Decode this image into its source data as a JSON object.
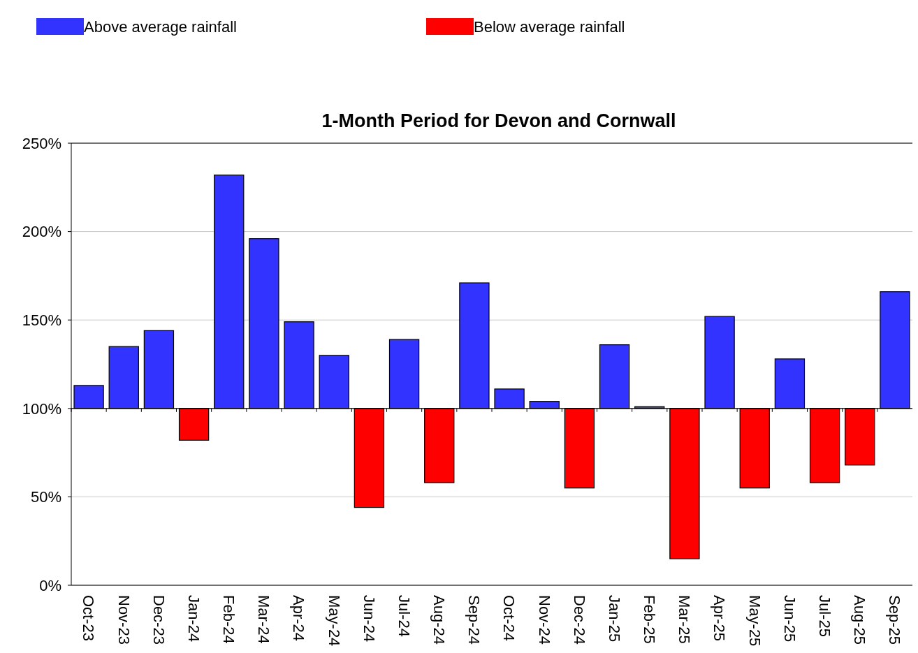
{
  "chart_data": {
    "type": "bar",
    "title": "1-Month Period for Devon and Cornwall",
    "categories": [
      "Oct-23",
      "Nov-23",
      "Dec-23",
      "Jan-24",
      "Feb-24",
      "Mar-24",
      "Apr-24",
      "May-24",
      "Jun-24",
      "Jul-24",
      "Aug-24",
      "Sep-24",
      "Oct-24",
      "Nov-24",
      "Dec-24",
      "Jan-25",
      "Feb-25",
      "Mar-25",
      "Apr-25",
      "May-25",
      "Jun-25",
      "Jul-25",
      "Aug-25",
      "Sep-25"
    ],
    "series": [
      {
        "name": "Above average rainfall",
        "color": "#3333ff",
        "base": [
          100,
          100,
          100,
          null,
          100,
          100,
          100,
          100,
          null,
          100,
          null,
          100,
          100,
          100,
          null,
          100,
          100,
          null,
          100,
          null,
          100,
          null,
          null,
          100
        ],
        "values": [
          13,
          35,
          44,
          null,
          132,
          96,
          49,
          30,
          null,
          39,
          null,
          71,
          11,
          4,
          null,
          36,
          1,
          null,
          52,
          null,
          28,
          null,
          null,
          66
        ]
      },
      {
        "name": "Below average rainfall",
        "color": "#ff0000",
        "base": [
          null,
          null,
          null,
          100,
          null,
          null,
          null,
          null,
          100,
          null,
          100,
          null,
          null,
          null,
          100,
          null,
          null,
          100,
          null,
          100,
          null,
          100,
          100,
          null
        ],
        "values": [
          null,
          null,
          null,
          -18,
          null,
          null,
          null,
          null,
          -56,
          null,
          -42,
          null,
          null,
          null,
          -45,
          null,
          null,
          -85,
          null,
          -45,
          null,
          -42,
          -32,
          null
        ]
      }
    ],
    "ylim": [
      0,
      250
    ],
    "yticks": [
      {
        "value": 0,
        "label": "0%"
      },
      {
        "value": 50,
        "label": "50%"
      },
      {
        "value": 100,
        "label": "100%"
      },
      {
        "value": 150,
        "label": "150%"
      },
      {
        "value": 200,
        "label": "200%"
      },
      {
        "value": 250,
        "label": "250%"
      }
    ],
    "ref_lines": [
      {
        "axis": "y",
        "value": 100,
        "color": "#000000"
      }
    ],
    "grid": "y",
    "legend": "top left"
  }
}
